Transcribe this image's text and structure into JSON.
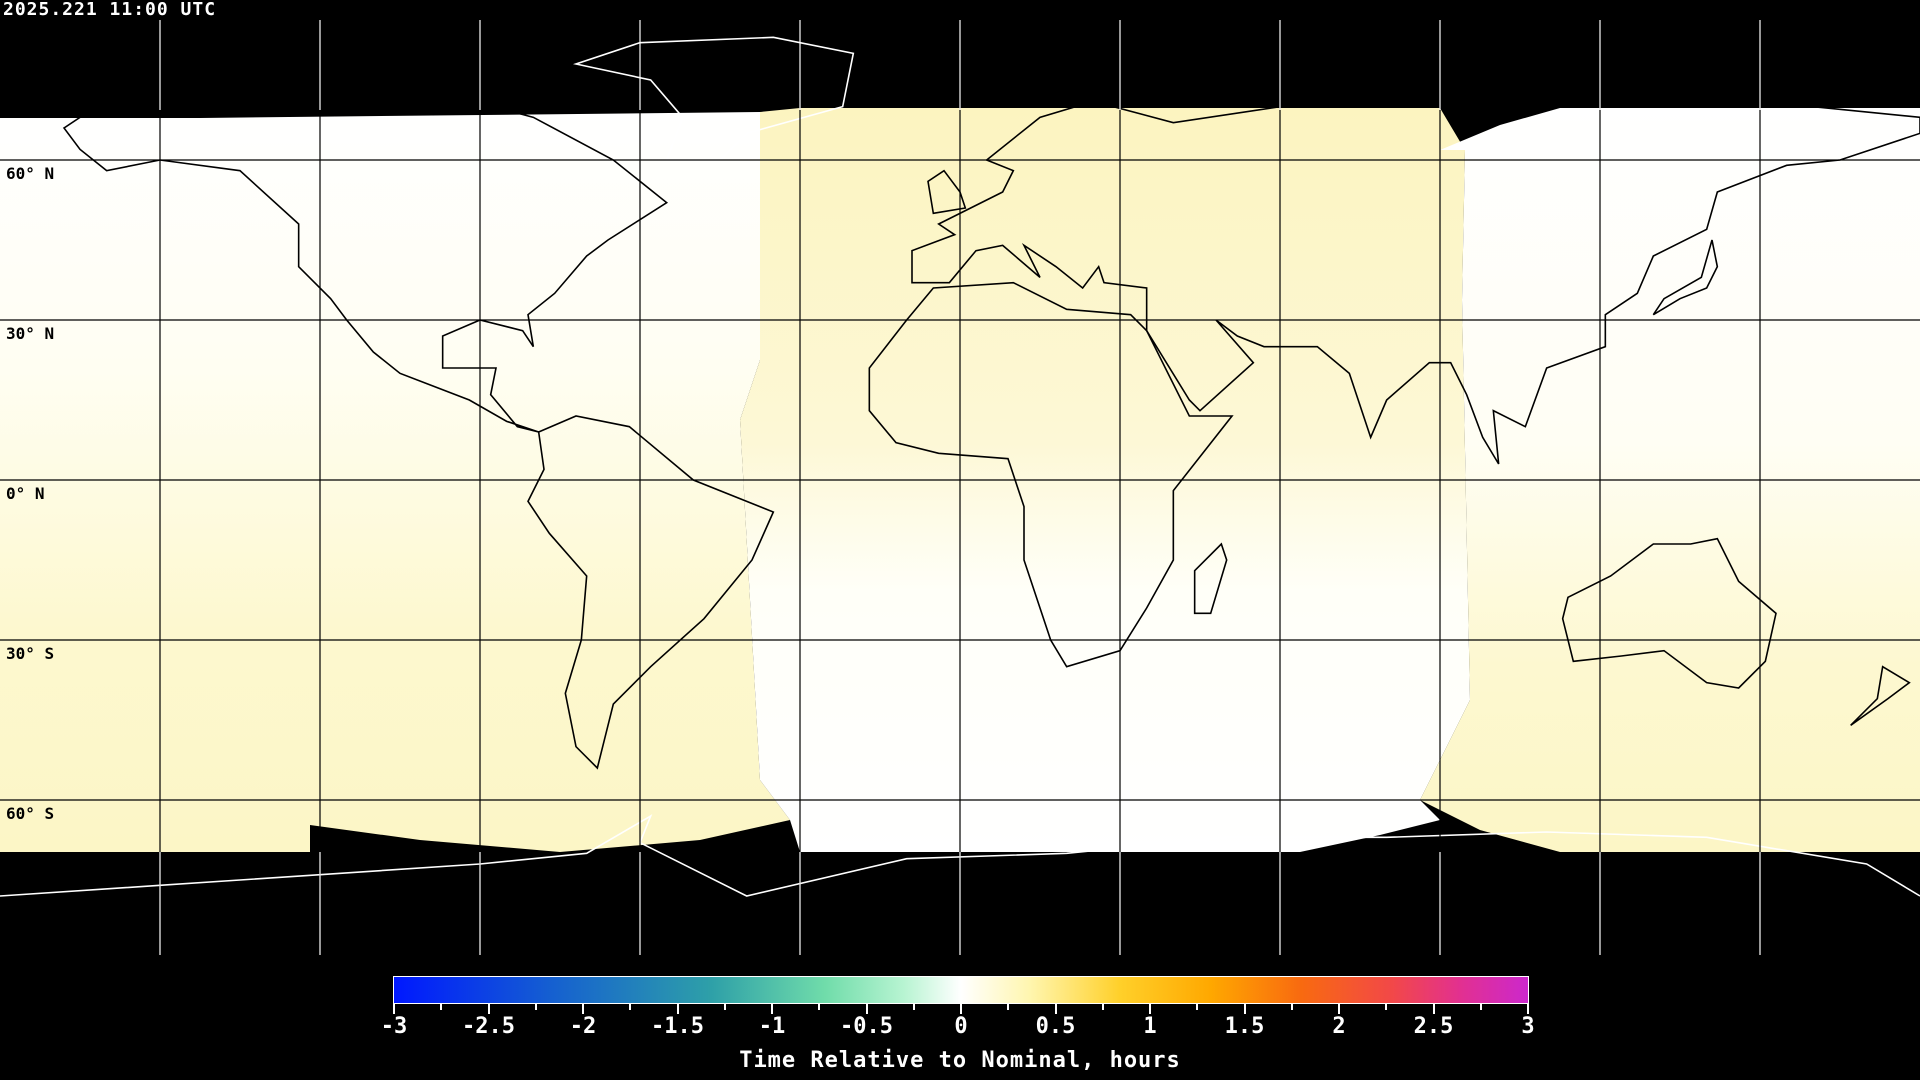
{
  "header": {
    "timestamp": "2025.221 11:00 UTC"
  },
  "map": {
    "projection": "equirectangular",
    "grid_spacing_degrees": 30,
    "lat_labels": [
      "60° N",
      "30° N",
      "0° N",
      "30° S",
      "60° S"
    ],
    "colors": {
      "background": "#000000",
      "coastline_on_data": "#000000",
      "coastline_on_black": "#ffffff",
      "gridline": "#000000",
      "near_zero_positive": "#fdf8cc",
      "zero": "#ffffff"
    }
  },
  "colorbar": {
    "min": -3,
    "max": 3,
    "tick_labels": [
      "-3",
      "-2.5",
      "-2",
      "-1.5",
      "-1",
      "-0.5",
      "0",
      "0.5",
      "1",
      "1.5",
      "2",
      "2.5",
      "3"
    ],
    "title": "Time Relative to Nominal, hours",
    "colormap": [
      "#0018ff",
      "#2ea0a8",
      "#70dcaa",
      "#ffffff",
      "#ffd02a",
      "#ffa800",
      "#f86a10",
      "#f24848",
      "#cc28cc"
    ]
  }
}
